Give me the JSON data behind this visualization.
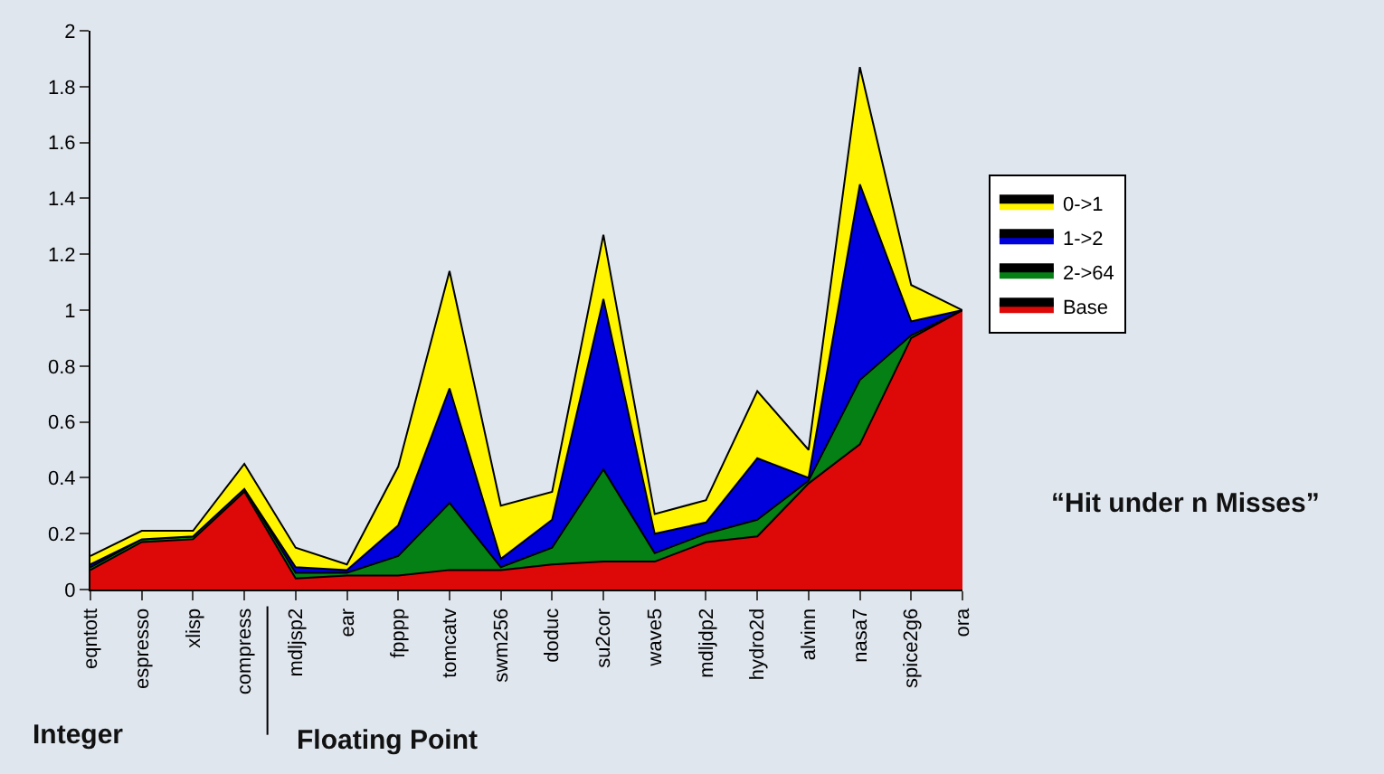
{
  "chart_data": {
    "type": "area",
    "stacked": true,
    "categories": [
      "eqntott",
      "espresso",
      "xlisp",
      "compress",
      "mdljsp2",
      "ear",
      "fpppp",
      "tomcatv",
      "swm256",
      "doduc",
      "su2cor",
      "wave5",
      "mdljdp2",
      "hydro2d",
      "alvinn",
      "nasa7",
      "spice2g6",
      "ora"
    ],
    "series": [
      {
        "name": "Base",
        "color": "#dd0808",
        "values": [
          0.07,
          0.17,
          0.18,
          0.35,
          0.04,
          0.05,
          0.05,
          0.07,
          0.07,
          0.09,
          0.1,
          0.1,
          0.17,
          0.19,
          0.38,
          0.52,
          0.9,
          1.0
        ]
      },
      {
        "name": "2->64",
        "color": "#058014",
        "values": [
          0.01,
          0.01,
          0.01,
          0.01,
          0.02,
          0.01,
          0.07,
          0.24,
          0.01,
          0.06,
          0.33,
          0.03,
          0.03,
          0.06,
          0.01,
          0.23,
          0.01,
          0
        ]
      },
      {
        "name": "1->2",
        "color": "#0000dd",
        "values": [
          0.01,
          0,
          0,
          0,
          0.02,
          0.01,
          0.11,
          0.41,
          0.03,
          0.1,
          0.61,
          0.07,
          0.04,
          0.22,
          0.01,
          0.7,
          0.05,
          0
        ]
      },
      {
        "name": "0->1",
        "color": "#fff500",
        "values": [
          0.03,
          0.03,
          0.02,
          0.09,
          0.07,
          0.02,
          0.21,
          0.42,
          0.19,
          0.1,
          0.23,
          0.07,
          0.08,
          0.24,
          0.1,
          0.42,
          0.13,
          0
        ]
      }
    ],
    "ylim": [
      0,
      2
    ],
    "yticks": [
      0,
      0.2,
      0.4,
      0.6,
      0.8,
      1,
      1.2,
      1.4,
      1.6,
      1.8,
      2
    ],
    "grid": false,
    "legend": "right",
    "marker": "none",
    "annotations": [
      "Integer",
      "Floating Point",
      "“Hit under n Misses”"
    ]
  }
}
